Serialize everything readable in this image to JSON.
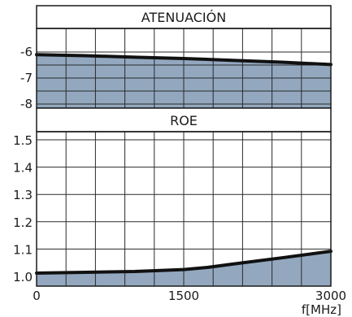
{
  "colors": {
    "fill": "#93a8bf",
    "line": "#111111",
    "grid": "#2a2a2a",
    "frame": "#1a1a1a",
    "background": "#ffffff"
  },
  "chart_data": [
    {
      "type": "area",
      "title": "ATENUACIÓN",
      "xlabel": "",
      "ylabel": "",
      "xlim": [
        0,
        3000
      ],
      "ylim": [
        -8,
        -5.5
      ],
      "grid": true,
      "y_ticks": [
        "-6",
        "-7",
        "-8"
      ],
      "x": [
        0,
        500,
        1000,
        1500,
        2000,
        2500,
        3000
      ],
      "values": [
        -6.1,
        -6.14,
        -6.2,
        -6.25,
        -6.32,
        -6.39,
        -6.48
      ]
    },
    {
      "type": "area",
      "title": "ROE",
      "xlabel": "f[MHz]",
      "ylabel": "",
      "xlim": [
        0,
        3000
      ],
      "ylim": [
        1.0,
        1.5
      ],
      "grid": true,
      "y_ticks": [
        "1.5",
        "1.4",
        "1.3",
        "1.2",
        "1.1",
        "1.0"
      ],
      "x_ticks": [
        "0",
        "1500",
        "3000"
      ],
      "x": [
        0,
        500,
        1000,
        1500,
        1750,
        2000,
        2500,
        3000
      ],
      "values": [
        1.012,
        1.015,
        1.018,
        1.025,
        1.033,
        1.045,
        1.068,
        1.092
      ]
    }
  ]
}
